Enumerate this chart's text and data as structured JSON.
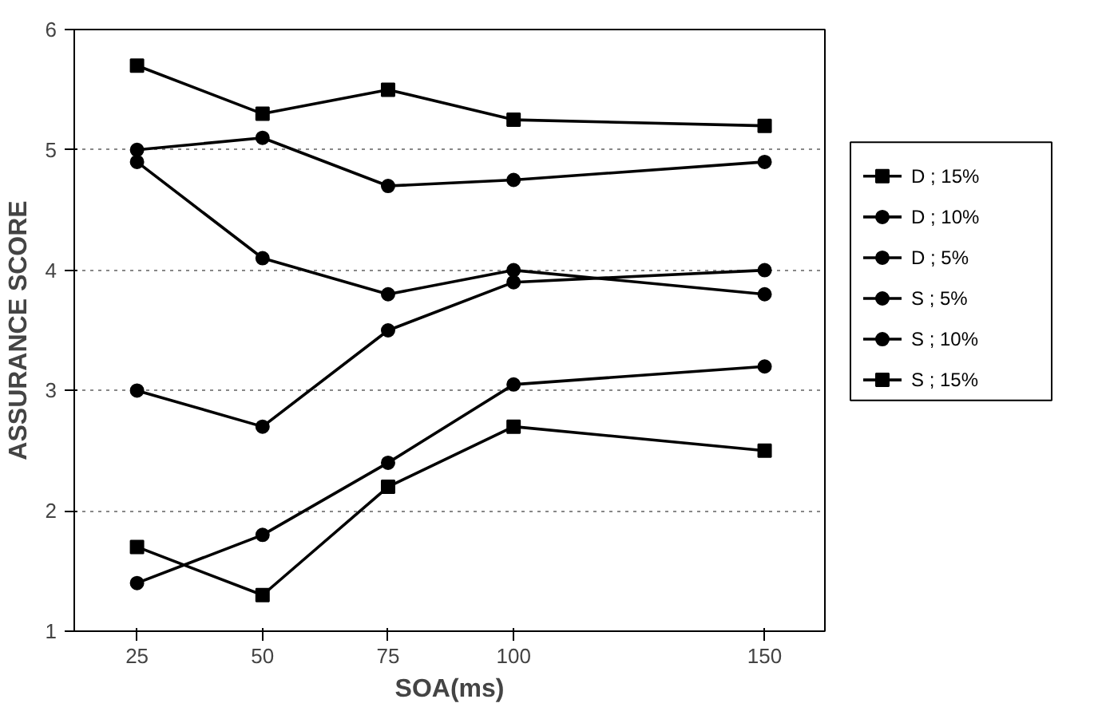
{
  "chart_data": {
    "type": "line",
    "xlabel": "SOA(ms)",
    "ylabel": "ASSURANCE SCORE",
    "x": [
      25,
      50,
      75,
      100,
      150
    ],
    "xlim": [
      12.5,
      162
    ],
    "xticks": [
      25,
      50,
      75,
      100,
      150
    ],
    "ylim": [
      1,
      6
    ],
    "yticks": [
      1,
      2,
      3,
      4,
      5,
      6
    ],
    "grid": "y",
    "legend": "right",
    "line_style": "solid",
    "series": [
      {
        "name": "D ; 15%",
        "color": "#000000",
        "marker": "square",
        "values": [
          5.7,
          5.3,
          5.5,
          5.25,
          5.2
        ]
      },
      {
        "name": "D ; 10%",
        "color": "#000000",
        "marker": "circle",
        "values": [
          5.0,
          5.1,
          4.7,
          4.75,
          4.9
        ]
      },
      {
        "name": "D ; 5%",
        "color": "#000000",
        "marker": "circle",
        "values": [
          4.9,
          4.1,
          3.8,
          4.0,
          3.8
        ]
      },
      {
        "name": "S ; 5%",
        "color": "#000000",
        "marker": "circle",
        "values": [
          3.0,
          2.7,
          3.5,
          3.9,
          4.0
        ]
      },
      {
        "name": "S ; 10%",
        "color": "#000000",
        "marker": "circle",
        "values": [
          1.4,
          1.8,
          2.4,
          3.05,
          3.2
        ]
      },
      {
        "name": "S ; 15%",
        "color": "#000000",
        "marker": "square",
        "values": [
          1.7,
          1.3,
          2.2,
          2.7,
          2.5
        ]
      }
    ]
  }
}
